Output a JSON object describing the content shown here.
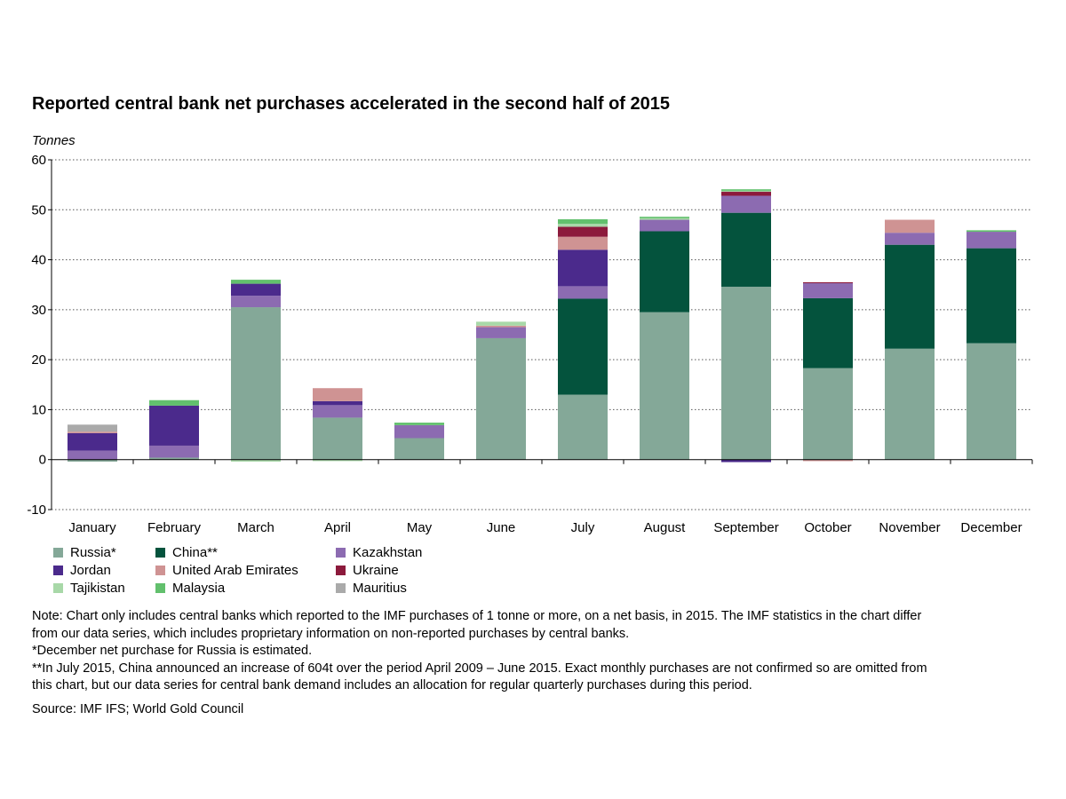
{
  "chart_data": {
    "type": "bar",
    "stacked": true,
    "title": "Reported central bank net purchases accelerated in the second half of 2015",
    "ylabel": "Tonnes",
    "xlabel": "",
    "ylim": [
      -10,
      60
    ],
    "yticks": [
      -10,
      0,
      10,
      20,
      30,
      40,
      50,
      60
    ],
    "grid": true,
    "legend_position": "bottom",
    "categories": [
      "January",
      "February",
      "March",
      "April",
      "May",
      "June",
      "July",
      "August",
      "September",
      "October",
      "November",
      "December"
    ],
    "series": [
      {
        "name": "Russia*",
        "color": "#84a898",
        "values": [
          -0.4,
          0.4,
          30.5,
          8.4,
          4.3,
          24.3,
          13.0,
          29.5,
          34.6,
          18.3,
          22.2,
          23.3
        ]
      },
      {
        "name": "China**",
        "color": "#04533d",
        "values": [
          0,
          0,
          0,
          0,
          0,
          0,
          19.2,
          16.2,
          14.8,
          14.0,
          20.8,
          19.0
        ]
      },
      {
        "name": "Kazakhstan",
        "color": "#8c6bb1",
        "values": [
          1.8,
          2.4,
          2.3,
          2.5,
          2.6,
          2.2,
          2.5,
          2.3,
          3.4,
          3.0,
          2.4,
          3.3
        ]
      },
      {
        "name": "Jordan",
        "color": "#4b2a8c",
        "values": [
          3.5,
          8.0,
          2.4,
          0.8,
          0,
          0,
          7.3,
          0,
          -0.5,
          0,
          0,
          0
        ]
      },
      {
        "name": "United Arab Emirates",
        "color": "#cf9393",
        "values": [
          0.3,
          0,
          0,
          2.6,
          0,
          0.3,
          2.6,
          0,
          0,
          -0.3,
          2.6,
          0
        ]
      },
      {
        "name": "Ukraine",
        "color": "#8c1a3c",
        "values": [
          0,
          0,
          0,
          0,
          0,
          0,
          2.0,
          0,
          0.8,
          0.2,
          0,
          0
        ]
      },
      {
        "name": "Tajikistan",
        "color": "#a8d8a8",
        "values": [
          0,
          0,
          -0.4,
          -0.3,
          0,
          0.8,
          0.6,
          0.3,
          0.2,
          0,
          0,
          0
        ]
      },
      {
        "name": "Malaysia",
        "color": "#62c06d",
        "values": [
          0,
          1.1,
          0.8,
          0,
          0.5,
          0,
          0.9,
          0.3,
          0.3,
          0,
          0,
          0.3
        ]
      },
      {
        "name": "Mauritius",
        "color": "#aaaaaa",
        "values": [
          1.4,
          0,
          0,
          0,
          0,
          0,
          0,
          0,
          0,
          0,
          0,
          0
        ]
      }
    ]
  },
  "notes": {
    "note": "Note: Chart only includes central banks which reported to the IMF purchases of 1 tonne or more, on a net basis, in 2015. The IMF statistics in the chart differ from our data series, which includes proprietary information on non-reported purchases by central banks.",
    "russia": "*December net purchase for Russia is estimated.",
    "china": "**In July 2015, China announced an increase of 604t over the period April 2009 – June 2015. Exact monthly purchases are not confirmed so are omitted from this chart, but our data series for central bank demand includes an allocation for regular quarterly purchases during this period.",
    "source": "Source: IMF IFS; World Gold Council"
  }
}
